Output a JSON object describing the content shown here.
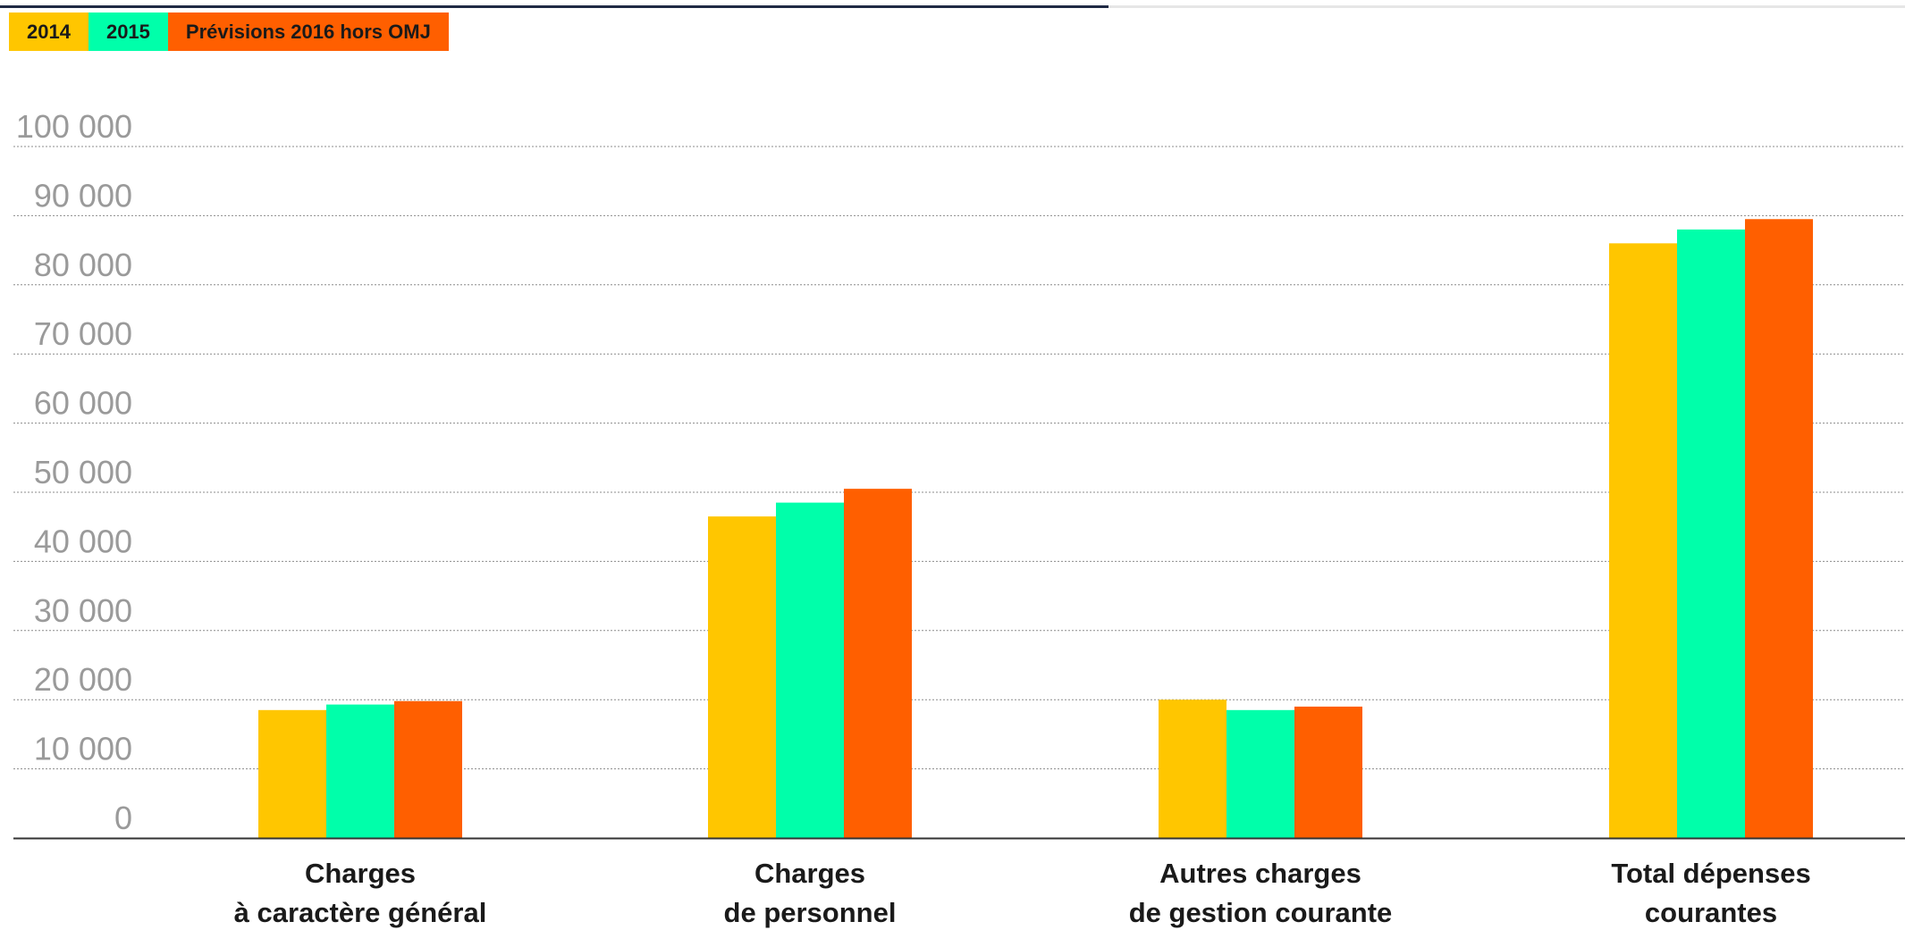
{
  "legend": [
    {
      "label": "2014",
      "color": "#FFC600"
    },
    {
      "label": "2015",
      "color": "#00FFAA"
    },
    {
      "label": "Prévisions 2016 hors OMJ",
      "color": "#FF5F00"
    }
  ],
  "chart_data": {
    "type": "bar",
    "categories": [
      [
        "Charges",
        "à caractère général"
      ],
      [
        "Charges",
        "de personnel"
      ],
      [
        "Autres charges",
        "de gestion courante"
      ],
      [
        "Total dépenses",
        "courantes"
      ]
    ],
    "series": [
      {
        "name": "2014",
        "color": "#FFC600",
        "values": [
          18500,
          46500,
          20000,
          86000
        ]
      },
      {
        "name": "2015",
        "color": "#00FFAA",
        "values": [
          19300,
          48500,
          18500,
          88000
        ]
      },
      {
        "name": "Prévisions 2016 hors OMJ",
        "color": "#FF5F00",
        "values": [
          19800,
          50500,
          19000,
          89500
        ]
      }
    ],
    "ylim": [
      0,
      100000
    ],
    "yticks": [
      0,
      10000,
      20000,
      30000,
      40000,
      50000,
      60000,
      70000,
      80000,
      90000,
      100000
    ],
    "ytick_labels": [
      "0",
      "10 000",
      "20 000",
      "30 000",
      "40 000",
      "50 000",
      "60 000",
      "70 000",
      "80 000",
      "90 000",
      "100 000"
    ],
    "grid": true,
    "legend_position": "top-left"
  }
}
